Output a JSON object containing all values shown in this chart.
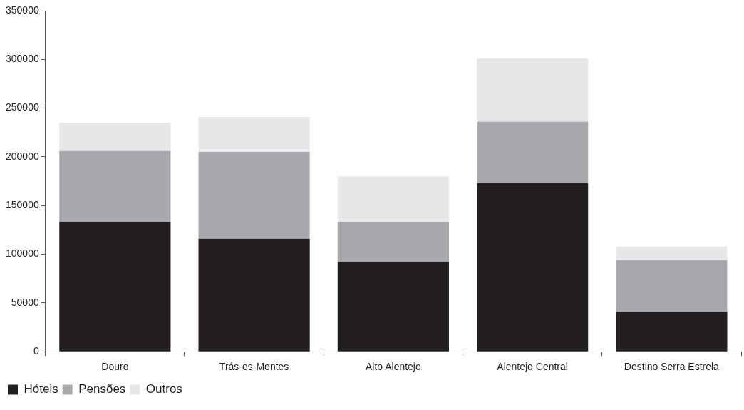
{
  "chart_data": {
    "type": "bar",
    "stacked": true,
    "categories": [
      "Douro",
      "Trás-os-Montes",
      "Alto Alentejo",
      "Alentejo Central",
      "Destino Serra Estrela"
    ],
    "series": [
      {
        "name": "Hóteis",
        "color": "#231f20",
        "values": [
          133000,
          116000,
          92000,
          173000,
          41000
        ]
      },
      {
        "name": "Pensões",
        "color": "#a7a9ac",
        "values": [
          73000,
          89000,
          41000,
          63000,
          53000
        ]
      },
      {
        "name": "Outros",
        "color": "#e6e7e8",
        "values": [
          29000,
          36000,
          47000,
          65000,
          14000
        ]
      }
    ],
    "ylim": [
      0,
      350000
    ],
    "yticks": [
      0,
      50000,
      100000,
      150000,
      200000,
      250000,
      300000,
      350000
    ],
    "grid": false,
    "legend": "bottom left"
  }
}
